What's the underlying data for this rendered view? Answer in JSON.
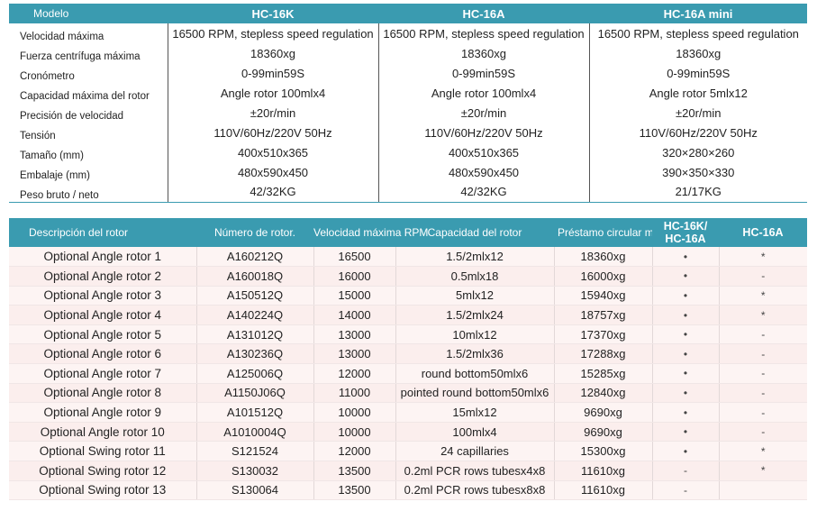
{
  "spec_table": {
    "header": [
      "Modelo",
      "HC-16K",
      "HC-16A",
      "HC-16A mini"
    ],
    "rows": [
      {
        "label": "Velocidad máxima",
        "values": [
          "16500 RPM, stepless speed regulation",
          "16500 RPM, stepless speed regulation",
          "16500 RPM, stepless speed regulation"
        ]
      },
      {
        "label": "Fuerza centrífuga máxima",
        "values": [
          "18360xg",
          "18360xg",
          "18360xg"
        ]
      },
      {
        "label": "Cronómetro",
        "values": [
          "0-99min59S",
          "0-99min59S",
          "0-99min59S"
        ]
      },
      {
        "label": "Capacidad máxima del rotor",
        "values": [
          "Angle rotor  100mlx4",
          "Angle rotor  100mlx4",
          "Angle rotor  5mlx12"
        ]
      },
      {
        "label": "Precisión de velocidad",
        "values": [
          "±20r/min",
          "±20r/min",
          "±20r/min"
        ]
      },
      {
        "label": "Tensión",
        "values": [
          "110V/60Hz/220V 50Hz",
          "110V/60Hz/220V 50Hz",
          "110V/60Hz/220V 50Hz"
        ]
      },
      {
        "label": "Tamaño (mm)",
        "values": [
          "400x510x365",
          "400x510x365",
          "320×280×260"
        ]
      },
      {
        "label": "Embalaje (mm)",
        "values": [
          "480x590x450",
          "480x590x450",
          "390×350×330"
        ]
      },
      {
        "label": "Peso bruto / neto",
        "values": [
          "42/32KG",
          "42/32KG",
          "21/17KG"
        ]
      }
    ]
  },
  "rotor_table": {
    "header": [
      "Descripción del rotor",
      "Número de rotor.",
      "Velocidad máxima RPM",
      "Capacidad del rotor",
      "Préstamo circular máximo XG",
      "HC-16K/ HC-16A",
      "HC-16A"
    ],
    "rows": [
      {
        "name": "Optional Angle rotor 1",
        "number": "A160212Q",
        "rpm": "16500",
        "capacity": "1.5/2mlx12",
        "xg": "18360xg",
        "k": "•",
        "a": "*"
      },
      {
        "name": "Optional Angle rotor 2",
        "number": "A160018Q",
        "rpm": "16000",
        "capacity": "0.5mlx18",
        "xg": "16000xg",
        "k": "•",
        "a": "-"
      },
      {
        "name": "Optional Angle rotor 3",
        "number": "A150512Q",
        "rpm": "15000",
        "capacity": "5mlx12",
        "xg": "15940xg",
        "k": "•",
        "a": "*"
      },
      {
        "name": "Optional Angle rotor 4",
        "number": "A140224Q",
        "rpm": "14000",
        "capacity": "1.5/2mlx24",
        "xg": "18757xg",
        "k": "•",
        "a": "*"
      },
      {
        "name": "Optional Angle rotor 5",
        "number": "A131012Q",
        "rpm": "13000",
        "capacity": "10mlx12",
        "xg": "17370xg",
        "k": "•",
        "a": "-"
      },
      {
        "name": "Optional Angle rotor 6",
        "number": "A130236Q",
        "rpm": "13000",
        "capacity": "1.5/2mlx36",
        "xg": "17288xg",
        "k": "•",
        "a": "-"
      },
      {
        "name": "Optional Angle rotor 7",
        "number": "A125006Q",
        "rpm": "12000",
        "capacity": "round bottom50mlx6",
        "xg": "15285xg",
        "k": "•",
        "a": "-"
      },
      {
        "name": "Optional Angle rotor 8",
        "number": "A1150J06Q",
        "rpm": "11000",
        "capacity": "pointed round bottom50mlx6",
        "xg": "12840xg",
        "k": "•",
        "a": "-"
      },
      {
        "name": "Optional Angle rotor 9",
        "number": "A101512Q",
        "rpm": "10000",
        "capacity": "15mlx12",
        "xg": "9690xg",
        "k": "•",
        "a": "-"
      },
      {
        "name": "Optional Angle rotor 10",
        "number": "A1010004Q",
        "rpm": "10000",
        "capacity": "100mlx4",
        "xg": "9690xg",
        "k": "•",
        "a": "-"
      },
      {
        "name": "Optional Swing rotor 11",
        "number": "S121524",
        "rpm": "12000",
        "capacity": "24 capillaries",
        "xg": "15300xg",
        "k": "•",
        "a": "*"
      },
      {
        "name": "Optional Swing rotor 12",
        "number": "S130032",
        "rpm": "13500",
        "capacity": "0.2ml PCR rows tubesx4x8",
        "xg": "11610xg",
        "k": "-",
        "a": "*"
      },
      {
        "name": "Optional Swing rotor 13",
        "number": "S130064",
        "rpm": "13500",
        "capacity": "0.2ml PCR rows tubesx8x8",
        "xg": "11610xg",
        "k": "-",
        "a": ""
      }
    ]
  }
}
